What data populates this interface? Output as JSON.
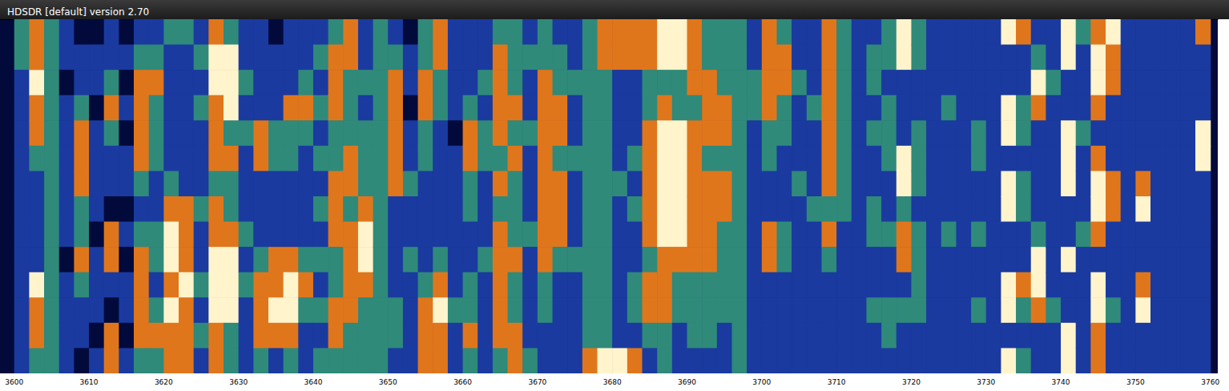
{
  "chart_data": {
    "type": "heatmap",
    "title": "HDSDR [default] version 2.70",
    "bins": [
      3600,
      3602,
      3604,
      3606,
      3608,
      3610,
      3612,
      3614,
      3616,
      3618,
      3620,
      3622,
      3624,
      3626,
      3628,
      3630,
      3632,
      3634,
      3636,
      3638,
      3640,
      3642,
      3644,
      3646,
      3648,
      3650,
      3652,
      3654,
      3656,
      3658,
      3660,
      3662,
      3664,
      3666,
      3668,
      3670,
      3672,
      3674,
      3676,
      3678,
      3680,
      3682,
      3684,
      3686,
      3688,
      3690,
      3692,
      3694,
      3696,
      3698,
      3700,
      3702,
      3704,
      3706,
      3708,
      3710,
      3712,
      3714,
      3716,
      3718,
      3720,
      3722,
      3724,
      3726,
      3728,
      3730,
      3732,
      3734,
      3736,
      3738,
      3740,
      3742,
      3744,
      3746,
      3748,
      3750,
      3752,
      3754,
      3756,
      3758,
      3760
    ],
    "cells": [
      [
        2,
        2,
        1,
        1,
        1,
        1,
        1,
        1,
        1,
        1,
        1,
        1,
        1,
        1
      ],
      [
        3,
        3,
        4,
        3,
        3,
        2,
        1,
        1,
        1,
        1,
        4,
        3,
        3,
        2
      ],
      [
        2,
        2,
        2,
        2,
        2,
        2,
        2,
        2,
        2,
        2,
        2,
        2,
        2,
        2
      ],
      [
        1,
        1,
        0,
        1,
        1,
        1,
        1,
        1,
        1,
        0,
        1,
        1,
        1,
        1
      ],
      [
        0,
        1,
        1,
        2,
        3,
        3,
        3,
        2,
        2,
        3,
        2,
        1,
        1,
        0
      ],
      [
        0,
        1,
        1,
        0,
        1,
        1,
        1,
        1,
        0,
        1,
        1,
        1,
        0,
        1
      ],
      [
        1,
        1,
        2,
        3,
        2,
        1,
        1,
        0,
        3,
        3,
        1,
        0,
        3,
        3
      ],
      [
        0,
        1,
        0,
        1,
        0,
        1,
        1,
        0,
        1,
        0,
        1,
        1,
        0,
        1
      ],
      [
        1,
        2,
        3,
        3,
        3,
        3,
        2,
        1,
        2,
        3,
        3,
        3,
        3,
        2
      ],
      [
        1,
        2,
        3,
        2,
        2,
        2,
        1,
        1,
        2,
        2,
        1,
        2,
        3,
        2
      ],
      [
        2,
        1,
        1,
        1,
        1,
        1,
        2,
        3,
        4,
        4,
        3,
        4,
        3,
        3
      ],
      [
        2,
        1,
        1,
        1,
        1,
        1,
        1,
        3,
        3,
        3,
        4,
        3,
        3,
        3
      ],
      [
        1,
        2,
        1,
        2,
        1,
        1,
        1,
        2,
        1,
        1,
        2,
        1,
        2,
        1
      ],
      [
        3,
        4,
        4,
        3,
        3,
        3,
        2,
        3,
        3,
        4,
        4,
        4,
        3,
        3
      ],
      [
        2,
        4,
        4,
        4,
        2,
        3,
        2,
        2,
        3,
        4,
        4,
        4,
        2,
        2
      ],
      [
        1,
        1,
        2,
        1,
        2,
        1,
        1,
        1,
        2,
        1,
        2,
        1,
        1,
        1
      ],
      [
        1,
        1,
        1,
        1,
        3,
        3,
        1,
        1,
        1,
        2,
        3,
        3,
        3,
        2
      ],
      [
        0,
        1,
        1,
        1,
        2,
        2,
        1,
        1,
        1,
        3,
        3,
        4,
        3,
        1
      ],
      [
        1,
        1,
        1,
        3,
        2,
        2,
        1,
        1,
        1,
        3,
        4,
        4,
        3,
        2
      ],
      [
        1,
        1,
        2,
        3,
        2,
        1,
        1,
        1,
        1,
        2,
        3,
        2,
        1,
        1
      ],
      [
        1,
        2,
        1,
        2,
        1,
        2,
        1,
        2,
        1,
        2,
        1,
        2,
        1,
        2
      ],
      [
        2,
        3,
        3,
        3,
        2,
        2,
        3,
        3,
        3,
        2,
        2,
        3,
        3,
        2
      ],
      [
        3,
        3,
        2,
        2,
        2,
        3,
        3,
        2,
        3,
        3,
        3,
        3,
        2,
        2
      ],
      [
        1,
        1,
        2,
        1,
        2,
        2,
        2,
        3,
        4,
        4,
        3,
        2,
        2,
        2
      ],
      [
        2,
        2,
        2,
        2,
        2,
        2,
        2,
        2,
        2,
        2,
        2,
        2,
        2,
        2
      ],
      [
        1,
        2,
        3,
        3,
        3,
        3,
        3,
        1,
        1,
        1,
        1,
        2,
        2,
        1
      ],
      [
        0,
        1,
        1,
        0,
        1,
        1,
        2,
        1,
        1,
        2,
        1,
        1,
        1,
        1
      ],
      [
        2,
        2,
        3,
        3,
        2,
        2,
        1,
        1,
        1,
        1,
        2,
        3,
        3,
        3
      ],
      [
        3,
        3,
        2,
        2,
        1,
        1,
        1,
        1,
        1,
        2,
        3,
        4,
        3,
        3
      ],
      [
        1,
        1,
        1,
        1,
        0,
        1,
        1,
        1,
        1,
        1,
        1,
        2,
        1,
        1
      ],
      [
        1,
        1,
        1,
        2,
        3,
        3,
        2,
        2,
        1,
        1,
        2,
        2,
        3,
        2
      ],
      [
        1,
        1,
        2,
        1,
        2,
        2,
        1,
        1,
        1,
        2,
        1,
        1,
        1,
        1
      ],
      [
        2,
        3,
        3,
        3,
        3,
        2,
        3,
        2,
        3,
        3,
        3,
        3,
        3,
        2
      ],
      [
        2,
        2,
        2,
        3,
        2,
        3,
        2,
        2,
        2,
        3,
        2,
        2,
        3,
        3
      ],
      [
        1,
        2,
        1,
        1,
        2,
        1,
        1,
        1,
        2,
        1,
        1,
        1,
        1,
        2
      ],
      [
        2,
        2,
        3,
        3,
        3,
        3,
        3,
        3,
        3,
        3,
        2,
        2,
        1,
        1
      ],
      [
        1,
        2,
        2,
        3,
        3,
        2,
        3,
        3,
        3,
        2,
        1,
        1,
        1,
        1
      ],
      [
        1,
        1,
        2,
        1,
        1,
        2,
        1,
        1,
        1,
        2,
        1,
        1,
        1,
        1
      ],
      [
        2,
        2,
        2,
        2,
        2,
        2,
        2,
        2,
        2,
        2,
        2,
        2,
        2,
        3
      ],
      [
        3,
        3,
        2,
        2,
        2,
        2,
        2,
        2,
        2,
        2,
        2,
        2,
        2,
        4
      ],
      [
        3,
        3,
        1,
        1,
        1,
        1,
        2,
        1,
        1,
        1,
        1,
        1,
        1,
        4
      ],
      [
        3,
        3,
        1,
        1,
        1,
        2,
        1,
        2,
        1,
        1,
        2,
        2,
        1,
        3
      ],
      [
        3,
        3,
        2,
        2,
        3,
        3,
        3,
        3,
        3,
        2,
        3,
        3,
        2,
        1
      ],
      [
        4,
        4,
        2,
        3,
        4,
        4,
        4,
        4,
        4,
        3,
        3,
        3,
        2,
        2
      ],
      [
        4,
        4,
        2,
        2,
        4,
        4,
        4,
        4,
        4,
        3,
        2,
        2,
        1,
        1
      ],
      [
        3,
        3,
        3,
        2,
        3,
        3,
        3,
        3,
        3,
        3,
        2,
        2,
        2,
        1
      ],
      [
        2,
        2,
        3,
        3,
        3,
        2,
        3,
        3,
        3,
        3,
        2,
        2,
        2,
        1
      ],
      [
        2,
        2,
        2,
        3,
        3,
        2,
        3,
        3,
        2,
        2,
        2,
        2,
        1,
        1
      ],
      [
        2,
        2,
        2,
        2,
        2,
        2,
        2,
        2,
        2,
        2,
        2,
        2,
        2,
        2
      ],
      [
        1,
        1,
        2,
        2,
        1,
        1,
        1,
        1,
        1,
        1,
        1,
        1,
        1,
        1
      ],
      [
        3,
        3,
        3,
        3,
        2,
        2,
        1,
        1,
        3,
        3,
        1,
        1,
        1,
        1
      ],
      [
        2,
        3,
        3,
        2,
        2,
        1,
        1,
        1,
        2,
        2,
        1,
        1,
        1,
        1
      ],
      [
        1,
        1,
        2,
        1,
        1,
        1,
        2,
        1,
        1,
        1,
        1,
        1,
        1,
        1
      ],
      [
        1,
        1,
        1,
        2,
        1,
        1,
        1,
        2,
        1,
        1,
        1,
        1,
        1,
        1
      ],
      [
        3,
        3,
        3,
        3,
        3,
        3,
        3,
        2,
        3,
        2,
        1,
        1,
        1,
        1
      ],
      [
        2,
        2,
        2,
        2,
        2,
        2,
        2,
        2,
        1,
        1,
        1,
        1,
        1,
        1
      ],
      [
        1,
        1,
        1,
        1,
        1,
        1,
        1,
        1,
        1,
        1,
        1,
        1,
        1,
        1
      ],
      [
        1,
        2,
        2,
        1,
        2,
        1,
        1,
        2,
        2,
        1,
        1,
        2,
        1,
        1
      ],
      [
        2,
        2,
        1,
        2,
        2,
        2,
        1,
        1,
        2,
        1,
        1,
        2,
        2,
        1
      ],
      [
        4,
        4,
        1,
        1,
        1,
        4,
        4,
        2,
        3,
        3,
        1,
        2,
        1,
        1
      ],
      [
        2,
        2,
        1,
        1,
        2,
        2,
        2,
        1,
        2,
        2,
        2,
        2,
        1,
        1
      ],
      [
        1,
        1,
        1,
        1,
        1,
        1,
        1,
        1,
        1,
        1,
        1,
        1,
        1,
        1
      ],
      [
        1,
        1,
        1,
        2,
        1,
        1,
        1,
        1,
        2,
        1,
        1,
        1,
        1,
        1
      ],
      [
        1,
        1,
        1,
        1,
        1,
        1,
        1,
        1,
        1,
        1,
        1,
        1,
        1,
        1
      ],
      [
        1,
        1,
        1,
        1,
        2,
        2,
        1,
        1,
        2,
        1,
        1,
        2,
        1,
        1
      ],
      [
        1,
        1,
        1,
        1,
        1,
        1,
        1,
        1,
        1,
        1,
        1,
        1,
        1,
        1
      ],
      [
        4,
        1,
        1,
        4,
        4,
        1,
        4,
        4,
        1,
        1,
        4,
        4,
        1,
        4
      ],
      [
        3,
        1,
        1,
        2,
        2,
        1,
        2,
        2,
        1,
        1,
        3,
        2,
        1,
        2
      ],
      [
        1,
        2,
        4,
        3,
        1,
        1,
        1,
        1,
        2,
        4,
        4,
        3,
        1,
        1
      ],
      [
        1,
        1,
        2,
        1,
        1,
        1,
        1,
        1,
        1,
        1,
        1,
        2,
        1,
        1
      ],
      [
        4,
        4,
        1,
        1,
        4,
        4,
        4,
        1,
        1,
        4,
        1,
        1,
        4,
        4
      ],
      [
        2,
        1,
        1,
        1,
        2,
        1,
        1,
        1,
        2,
        1,
        1,
        1,
        1,
        1
      ],
      [
        3,
        4,
        4,
        3,
        1,
        3,
        4,
        4,
        3,
        1,
        4,
        4,
        3,
        3
      ],
      [
        4,
        3,
        3,
        1,
        1,
        1,
        3,
        3,
        1,
        1,
        1,
        2,
        1,
        1
      ],
      [
        1,
        1,
        1,
        1,
        1,
        1,
        1,
        1,
        1,
        1,
        1,
        1,
        1,
        1
      ],
      [
        1,
        1,
        1,
        1,
        1,
        1,
        3,
        4,
        1,
        1,
        3,
        4,
        1,
        1
      ],
      [
        1,
        1,
        1,
        1,
        1,
        1,
        1,
        1,
        1,
        1,
        1,
        1,
        1,
        1
      ],
      [
        1,
        1,
        1,
        1,
        1,
        1,
        1,
        1,
        1,
        1,
        1,
        1,
        1,
        1
      ],
      [
        1,
        1,
        1,
        1,
        1,
        1,
        1,
        1,
        1,
        1,
        1,
        1,
        1,
        1
      ],
      [
        3,
        1,
        1,
        1,
        4,
        4,
        1,
        1,
        1,
        1,
        1,
        1,
        1,
        1
      ]
    ],
    "xlim": [
      3598.1,
      3761
    ],
    "xticks": [
      3600,
      3610,
      3620,
      3630,
      3640,
      3650,
      3660,
      3670,
      3680,
      3690,
      3700,
      3710,
      3720,
      3730,
      3740,
      3750,
      3760
    ],
    "ylim": [
      0,
      14
    ],
    "zlim": [
      0,
      4
    ],
    "tick_labels": "x",
    "grid": false
  }
}
